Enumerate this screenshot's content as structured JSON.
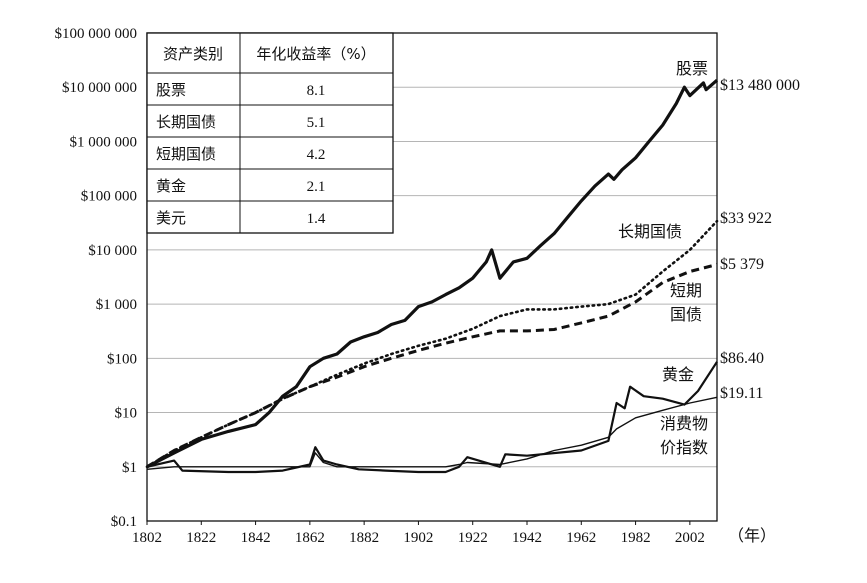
{
  "chart_data": {
    "type": "line",
    "y_scale": "log",
    "ylim": [
      0.1,
      100000000
    ],
    "xlim": [
      1802,
      2012
    ],
    "grid": "horizontal",
    "x_tick_labels": [
      "1802",
      "1822",
      "1842",
      "1862",
      "1882",
      "1902",
      "1922",
      "1942",
      "1962",
      "1982",
      "2002"
    ],
    "x_unit_label": "（年）",
    "y_tick_labels": [
      "$100 000 000",
      "$10 000 000",
      "$1 000 000",
      "$100 000",
      "$10 000",
      "$1 000",
      "$100",
      "$10",
      "$1",
      "$0.1"
    ],
    "table": {
      "headers": [
        "资产类别",
        "年化收益率（%）"
      ],
      "rows": [
        [
          "股票",
          "8.1"
        ],
        [
          "长期国债",
          "5.1"
        ],
        [
          "短期国债",
          "4.2"
        ],
        [
          "黄金",
          "2.1"
        ],
        [
          "美元",
          "1.4"
        ]
      ]
    },
    "annotations": {
      "stocks": "股票",
      "bonds": "长期国债",
      "bills_line1": "短期",
      "bills_line2": "国债",
      "gold": "黄金",
      "cpi_line1": "消费物",
      "cpi_line2": "价指数"
    },
    "series": [
      {
        "key": "stocks",
        "style": "thick",
        "end_label": "$13 480 000",
        "points": [
          [
            1802,
            1
          ],
          [
            1812,
            1.8
          ],
          [
            1822,
            3.2
          ],
          [
            1832,
            4.5
          ],
          [
            1842,
            6
          ],
          [
            1847,
            10
          ],
          [
            1852,
            20
          ],
          [
            1857,
            30
          ],
          [
            1862,
            70
          ],
          [
            1867,
            100
          ],
          [
            1872,
            120
          ],
          [
            1877,
            200
          ],
          [
            1882,
            250
          ],
          [
            1887,
            300
          ],
          [
            1892,
            420
          ],
          [
            1897,
            500
          ],
          [
            1902,
            900
          ],
          [
            1907,
            1100
          ],
          [
            1912,
            1500
          ],
          [
            1917,
            2000
          ],
          [
            1922,
            3000
          ],
          [
            1927,
            6000
          ],
          [
            1929,
            10000
          ],
          [
            1932,
            3000
          ],
          [
            1937,
            6000
          ],
          [
            1942,
            7000
          ],
          [
            1947,
            12000
          ],
          [
            1952,
            20000
          ],
          [
            1957,
            40000
          ],
          [
            1962,
            80000
          ],
          [
            1967,
            150000
          ],
          [
            1972,
            250000
          ],
          [
            1974,
            200000
          ],
          [
            1977,
            300000
          ],
          [
            1982,
            500000
          ],
          [
            1987,
            1000000
          ],
          [
            1992,
            2000000
          ],
          [
            1997,
            5000000
          ],
          [
            2000,
            10000000
          ],
          [
            2002,
            7000000
          ],
          [
            2007,
            12000000
          ],
          [
            2008,
            9000000
          ],
          [
            2012,
            13480000
          ]
        ]
      },
      {
        "key": "bonds",
        "style": "dotted",
        "end_label": "$33 922",
        "points": [
          [
            1802,
            1
          ],
          [
            1812,
            2
          ],
          [
            1822,
            3.5
          ],
          [
            1832,
            6
          ],
          [
            1842,
            10
          ],
          [
            1852,
            18
          ],
          [
            1862,
            30
          ],
          [
            1872,
            50
          ],
          [
            1882,
            80
          ],
          [
            1892,
            120
          ],
          [
            1902,
            170
          ],
          [
            1912,
            230
          ],
          [
            1922,
            350
          ],
          [
            1932,
            600
          ],
          [
            1942,
            800
          ],
          [
            1952,
            800
          ],
          [
            1962,
            900
          ],
          [
            1972,
            1000
          ],
          [
            1982,
            1500
          ],
          [
            1992,
            4000
          ],
          [
            2002,
            10000
          ],
          [
            2012,
            33922
          ]
        ]
      },
      {
        "key": "bills",
        "style": "dashed",
        "end_label": "$5 379",
        "points": [
          [
            1802,
            1
          ],
          [
            1812,
            2
          ],
          [
            1822,
            3.5
          ],
          [
            1832,
            6
          ],
          [
            1842,
            10
          ],
          [
            1852,
            18
          ],
          [
            1862,
            30
          ],
          [
            1872,
            45
          ],
          [
            1882,
            70
          ],
          [
            1892,
            100
          ],
          [
            1902,
            140
          ],
          [
            1912,
            190
          ],
          [
            1922,
            250
          ],
          [
            1932,
            320
          ],
          [
            1942,
            320
          ],
          [
            1952,
            340
          ],
          [
            1962,
            450
          ],
          [
            1972,
            600
          ],
          [
            1982,
            1100
          ],
          [
            1992,
            2500
          ],
          [
            2002,
            4000
          ],
          [
            2012,
            5379
          ]
        ]
      },
      {
        "key": "gold",
        "style": "medium",
        "end_label": "$86.40",
        "points": [
          [
            1802,
            1
          ],
          [
            1812,
            1.3
          ],
          [
            1815,
            0.85
          ],
          [
            1832,
            0.8
          ],
          [
            1842,
            0.8
          ],
          [
            1852,
            0.85
          ],
          [
            1862,
            1.1
          ],
          [
            1864,
            2.3
          ],
          [
            1867,
            1.3
          ],
          [
            1872,
            1.1
          ],
          [
            1880,
            0.9
          ],
          [
            1890,
            0.85
          ],
          [
            1902,
            0.8
          ],
          [
            1912,
            0.8
          ],
          [
            1917,
            1.0
          ],
          [
            1920,
            1.5
          ],
          [
            1932,
            1.0
          ],
          [
            1934,
            1.7
          ],
          [
            1942,
            1.6
          ],
          [
            1962,
            2.0
          ],
          [
            1972,
            3
          ],
          [
            1975,
            15
          ],
          [
            1978,
            12
          ],
          [
            1980,
            30
          ],
          [
            1985,
            20
          ],
          [
            1992,
            18
          ],
          [
            2000,
            14
          ],
          [
            2005,
            25
          ],
          [
            2012,
            86.4
          ]
        ]
      },
      {
        "key": "cpi",
        "style": "thin",
        "end_label": "$19.11",
        "points": [
          [
            1802,
            0.9
          ],
          [
            1812,
            1.0
          ],
          [
            1815,
            1.0
          ],
          [
            1832,
            1.0
          ],
          [
            1842,
            1.0
          ],
          [
            1852,
            1.0
          ],
          [
            1862,
            1.0
          ],
          [
            1864,
            1.8
          ],
          [
            1867,
            1.2
          ],
          [
            1872,
            1.0
          ],
          [
            1882,
            1.0
          ],
          [
            1892,
            1.0
          ],
          [
            1902,
            1.0
          ],
          [
            1912,
            1.0
          ],
          [
            1917,
            1.1
          ],
          [
            1920,
            1.2
          ],
          [
            1932,
            1.1
          ],
          [
            1942,
            1.4
          ],
          [
            1952,
            2.0
          ],
          [
            1962,
            2.5
          ],
          [
            1972,
            3.5
          ],
          [
            1975,
            5
          ],
          [
            1982,
            8
          ],
          [
            1992,
            11
          ],
          [
            2002,
            15
          ],
          [
            2012,
            19.11
          ]
        ]
      }
    ]
  }
}
